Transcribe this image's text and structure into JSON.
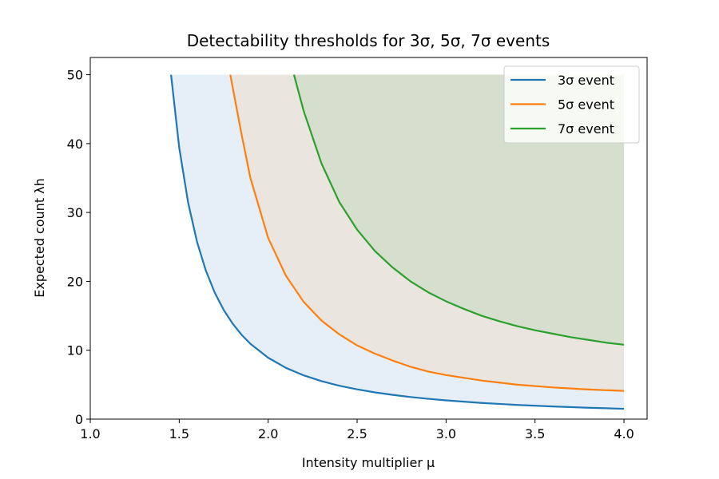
{
  "chart_data": {
    "type": "line",
    "title": "Detectability thresholds for 3σ, 5σ, 7σ events",
    "xlabel": "Intensity multiplier μ",
    "ylabel": "Expected count λh",
    "xlim": [
      1.0,
      4.13
    ],
    "ylim": [
      0,
      52.5
    ],
    "xticks": [
      1.0,
      1.5,
      2.0,
      2.5,
      3.0,
      3.5,
      4.0
    ],
    "xtick_labels": [
      "1.0",
      "1.5",
      "2.0",
      "2.5",
      "3.0",
      "3.5",
      "4.0"
    ],
    "yticks": [
      0,
      10,
      20,
      30,
      40,
      50
    ],
    "ytick_labels": [
      "0",
      "10",
      "20",
      "30",
      "40",
      "50"
    ],
    "grid": false,
    "legend_position": "top-right",
    "fill_upper": 50,
    "series": [
      {
        "name": "3σ event",
        "color": "#1f77b4",
        "fill": "#e6eff7",
        "x": [
          1.454,
          1.5,
          1.55,
          1.6,
          1.65,
          1.7,
          1.75,
          1.8,
          1.85,
          1.9,
          2.0,
          2.1,
          2.2,
          2.3,
          2.4,
          2.5,
          2.6,
          2.7,
          2.8,
          2.9,
          3.0,
          3.2,
          3.4,
          3.6,
          3.8,
          4.0
        ],
        "y": [
          50.0,
          39.41,
          31.43,
          25.74,
          21.54,
          18.34,
          15.85,
          13.87,
          12.26,
          10.94,
          8.91,
          7.44,
          6.35,
          5.51,
          4.85,
          4.32,
          3.88,
          3.52,
          3.21,
          2.95,
          2.72,
          2.35,
          2.06,
          1.84,
          1.65,
          1.5
        ]
      },
      {
        "name": "5σ event",
        "color": "#ff7f0e",
        "fill": "#eae5df",
        "x": [
          1.787,
          1.85,
          1.9,
          2.0,
          2.1,
          2.2,
          2.3,
          2.4,
          2.5,
          2.6,
          2.7,
          2.8,
          2.9,
          3.0,
          3.2,
          3.4,
          3.6,
          3.8,
          4.0
        ],
        "y": [
          50.0,
          41.4,
          35.0,
          26.3,
          20.8,
          17.0,
          14.3,
          12.3,
          10.7,
          9.5,
          8.5,
          7.6,
          6.9,
          6.4,
          5.6,
          5.0,
          4.6,
          4.3,
          4.1
        ]
      },
      {
        "name": "7σ event",
        "color": "#2ca02c",
        "fill": "#d6dfcd",
        "x": [
          2.145,
          2.2,
          2.3,
          2.4,
          2.5,
          2.6,
          2.7,
          2.8,
          2.9,
          3.0,
          3.1,
          3.2,
          3.3,
          3.4,
          3.5,
          3.6,
          3.7,
          3.8,
          3.9,
          4.0
        ],
        "y": [
          50.0,
          44.7,
          37.1,
          31.5,
          27.5,
          24.4,
          22.0,
          20.0,
          18.4,
          17.1,
          16.0,
          15.0,
          14.2,
          13.5,
          12.9,
          12.4,
          11.9,
          11.5,
          11.1,
          10.8
        ]
      }
    ]
  }
}
